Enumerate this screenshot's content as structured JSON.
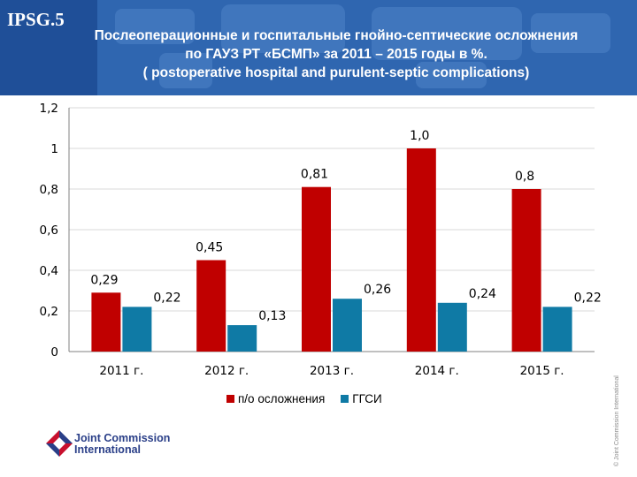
{
  "header": {
    "code": "IPSG.5",
    "title_lines": [
      "Послеоперационные и  госпитальные гнойно-септические осложнения",
      "по ГАУЗ РТ «БСМП» за 2011 – 2015 годы в %.",
      "( postoperative hospital and purulent-septic complications)"
    ]
  },
  "colors": {
    "header_bg": "#2f66b0",
    "series1": "#c00000",
    "series2": "#0f7aa5"
  },
  "chart_data": {
    "type": "bar",
    "title": "Послеоперационные и госпитальные гнойно-септические осложнения по ГАУЗ РТ «БСМП» за 2011 – 2015 годы в %.",
    "categories": [
      "2011 г.",
      "2012 г.",
      "2013 г.",
      "2014 г.",
      "2015 г."
    ],
    "series": [
      {
        "name": "п/о осложнения",
        "values": [
          0.29,
          0.45,
          0.81,
          1.0,
          0.8
        ],
        "labels": [
          "0,29",
          "0,45",
          "0,81",
          "1,0",
          "0,8"
        ]
      },
      {
        "name": "ГГСИ",
        "values": [
          0.22,
          0.13,
          0.26,
          0.24,
          0.22
        ],
        "labels": [
          "0,22",
          "0,13",
          "0,26",
          "0,24",
          "0,22"
        ]
      }
    ],
    "yticks": [
      "0",
      "0,2",
      "0,4",
      "0,6",
      "0,8",
      "1",
      "1,2"
    ],
    "ylim": [
      0,
      1.2
    ],
    "legend_position": "bottom",
    "grid": true
  },
  "footer": {
    "logo_line1": "Joint Commission",
    "logo_line2": "International",
    "copyright": "© Joint Commission International"
  }
}
